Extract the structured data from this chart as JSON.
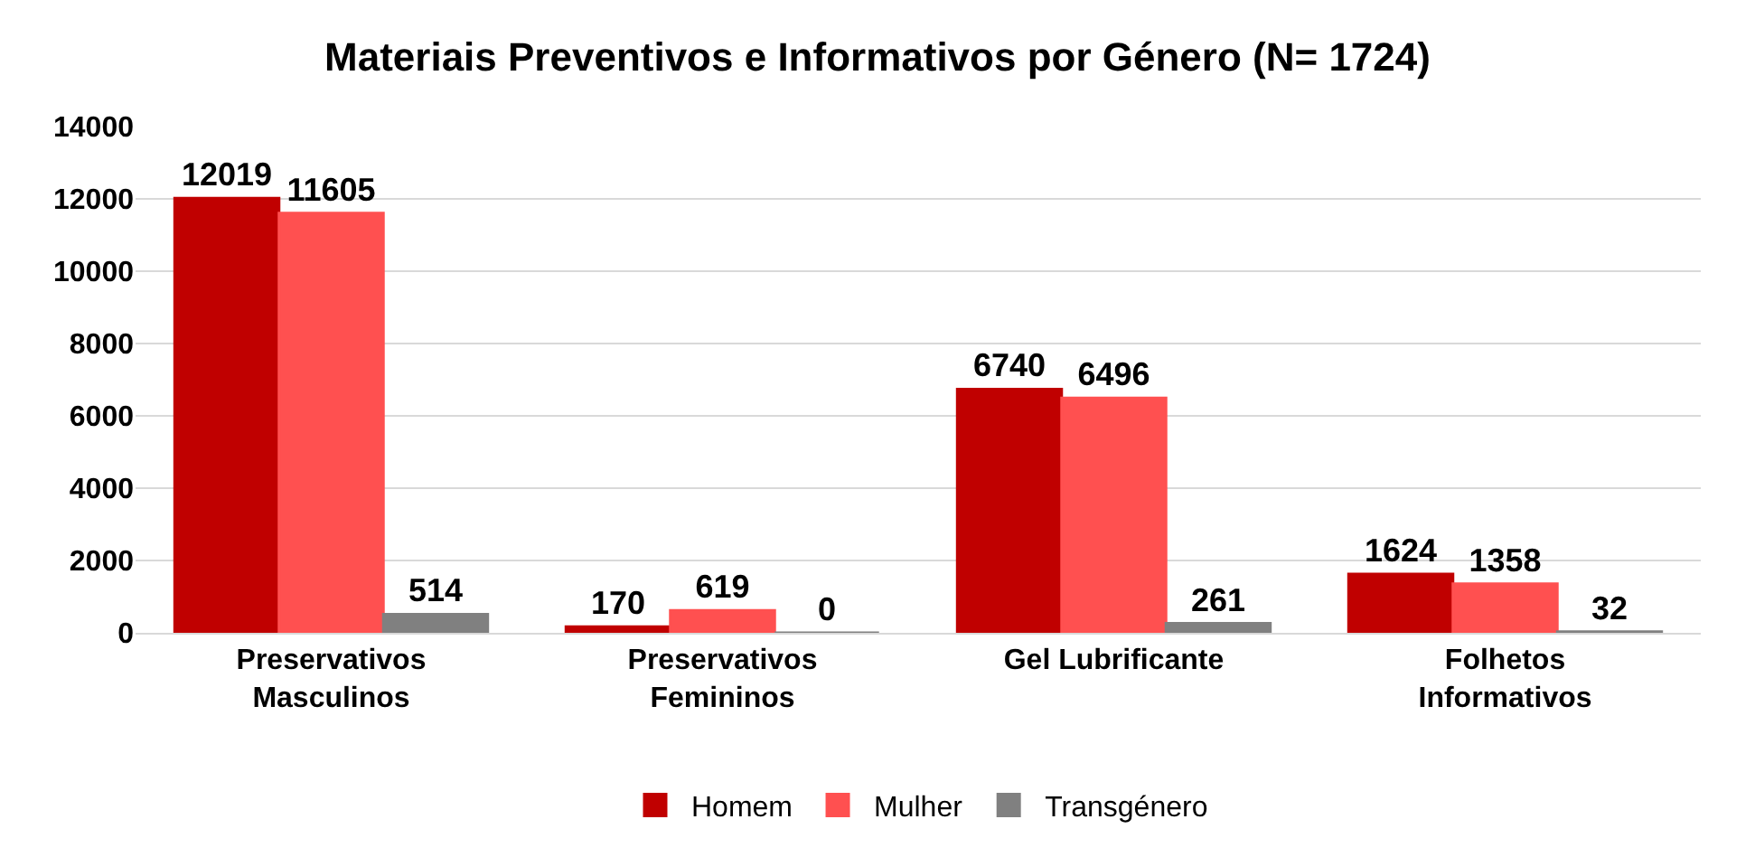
{
  "chart_data": {
    "type": "bar",
    "title": "Materiais Preventivos e Informativos por Género (N= 1724)",
    "categories": [
      "Preservativos\nMasculinos",
      "Preservativos\nFemininos",
      "Gel Lubrificante",
      "Folhetos\nInformativos"
    ],
    "series": [
      {
        "name": "Homem",
        "color": "#c00000",
        "values": [
          12019,
          170,
          6740,
          1624
        ]
      },
      {
        "name": "Mulher",
        "color": "#ff5050",
        "values": [
          11605,
          619,
          6496,
          1358
        ]
      },
      {
        "name": "Transgénero",
        "color": "#808080",
        "values": [
          514,
          0,
          261,
          32
        ]
      }
    ],
    "ylim": [
      0,
      14000
    ],
    "yticks": [
      0,
      2000,
      4000,
      6000,
      8000,
      10000,
      12000,
      14000
    ],
    "grid": "y",
    "legend": "bottom",
    "data_labels": true
  }
}
